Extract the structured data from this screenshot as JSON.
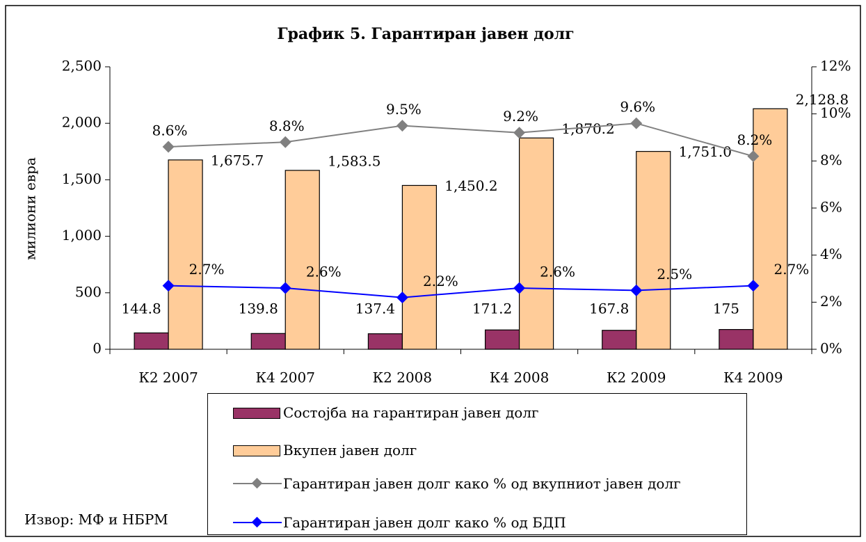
{
  "chart_data": {
    "type": "bar",
    "title": "График 5. Гарантиран јавен долг",
    "y_label": "милиони евра",
    "source": "Извор: МФ и НБРМ",
    "categories": [
      "К2 2007",
      "К4 2007",
      "К2 2008",
      "К4 2008",
      "К2 2009",
      "К4 2009"
    ],
    "series": [
      {
        "name": "Состојба на гарантиран јавен долг",
        "type": "bar",
        "color": "#993366",
        "values": [
          144.8,
          139.8,
          137.4,
          171.2,
          167.8,
          175
        ]
      },
      {
        "name": "Вкупен јавен долг",
        "type": "bar",
        "color": "#ffcc99",
        "values": [
          1675.7,
          1583.5,
          1450.2,
          1870.2,
          1751.0,
          2128.8
        ],
        "value_labels": [
          "1,675.7",
          "1,583.5",
          "1,450.2",
          "1,870.2",
          "1,751.0",
          "2,128.8"
        ]
      },
      {
        "name": "Гарантиран јавен долг како % од вкупниот јавен долг",
        "type": "line",
        "axis": "y2",
        "color": "#808080",
        "values": [
          8.6,
          8.8,
          9.5,
          9.2,
          9.6,
          8.2
        ],
        "value_labels": [
          "8.6%",
          "8.8%",
          "9.5%",
          "9.2%",
          "9.6%",
          "8.2%"
        ]
      },
      {
        "name": "Гарантиран јавен долг како % од БДП",
        "type": "line",
        "axis": "y2",
        "color": "#0000ff",
        "values": [
          2.7,
          2.6,
          2.2,
          2.6,
          2.5,
          2.7
        ],
        "value_labels": [
          "2.7%",
          "2.6%",
          "2.2%",
          "2.6%",
          "2.5%",
          "2.7%"
        ]
      }
    ],
    "ylim": [
      0,
      2500
    ],
    "yticks": [
      0,
      500,
      {
        "value": 1000,
        "label": "1,000"
      },
      {
        "value": 1500,
        "label": "1,500"
      },
      {
        "value": 2000,
        "label": "2,000"
      },
      {
        "value": 2500,
        "label": "2,500"
      }
    ],
    "y2lim": [
      0,
      12
    ],
    "y2ticks": [
      {
        "value": 0,
        "label": "0%"
      },
      {
        "value": 2,
        "label": "2%"
      },
      {
        "value": 4,
        "label": "4%"
      },
      {
        "value": 6,
        "label": "6%"
      },
      {
        "value": 8,
        "label": "8%"
      },
      {
        "value": 10,
        "label": "10%"
      },
      {
        "value": 12,
        "label": "12%"
      }
    ]
  }
}
